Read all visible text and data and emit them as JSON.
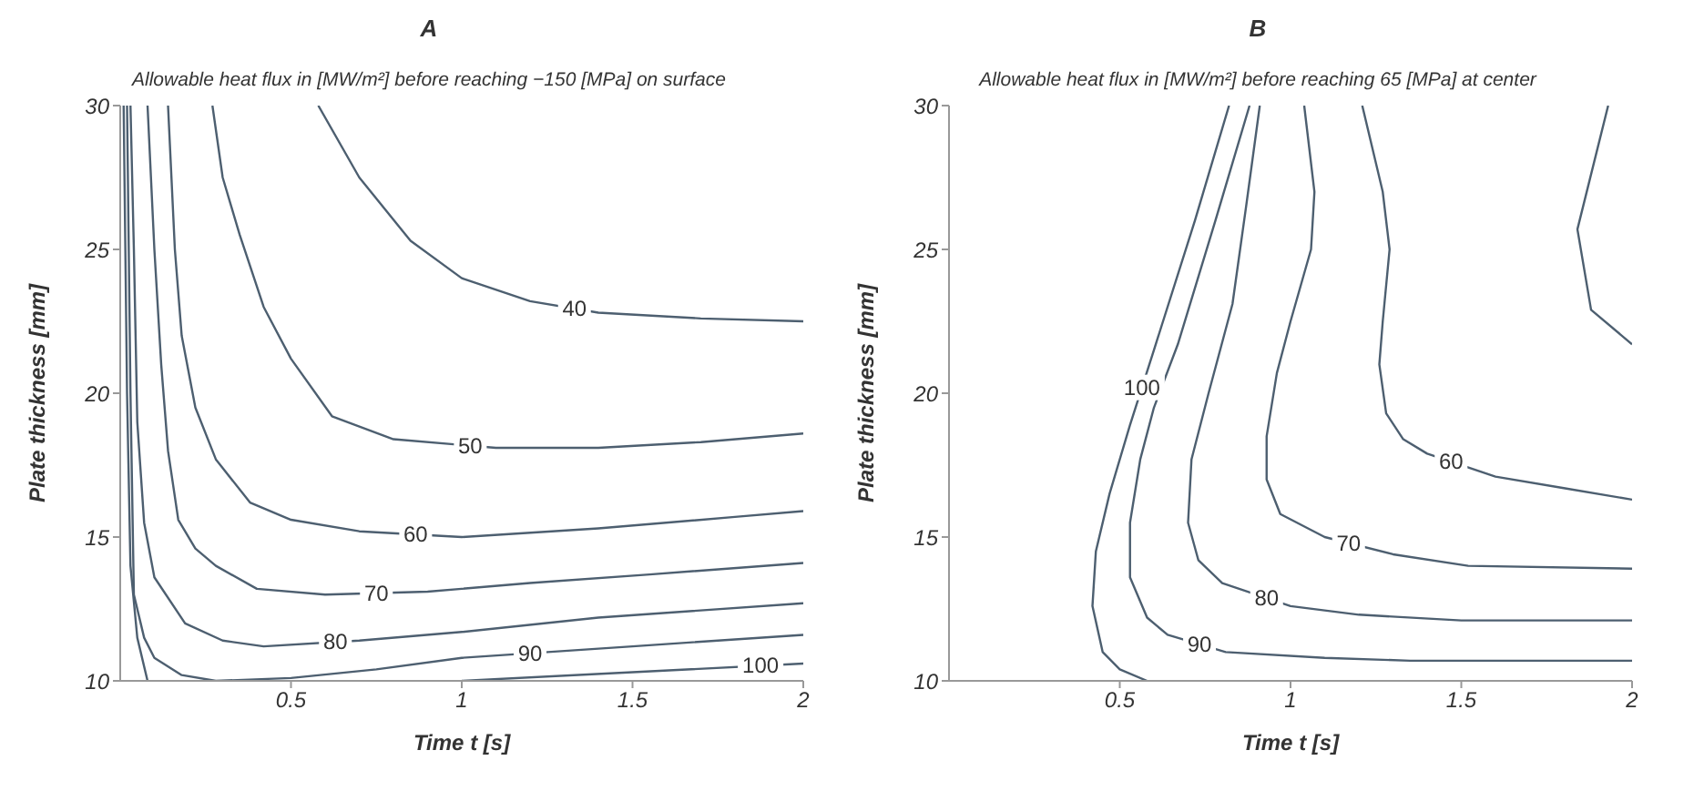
{
  "chart_data": [
    {
      "type": "line",
      "title": "A",
      "subtitle": "Allowable heat flux in [MW/m²] before reaching −150 [MPa] on surface",
      "xlabel": "Time t [s]",
      "ylabel": "Plate thickness [mm]",
      "xlim": [
        0,
        2
      ],
      "xticks": [
        0.5,
        1,
        1.5,
        2
      ],
      "ylim": [
        10,
        30
      ],
      "yticks": [
        10,
        15,
        20,
        25,
        30
      ],
      "grid": false,
      "legend": false,
      "marker": "none",
      "line_style": "solid",
      "series": [
        {
          "name": "40",
          "color": "#4d5f70",
          "x": [
            0.58,
            0.7,
            0.85,
            1,
            1.2,
            1.4,
            1.7,
            2
          ],
          "values": [
            30,
            27.5,
            25.3,
            24,
            23.2,
            22.8,
            22.6,
            22.5
          ]
        },
        {
          "name": "50",
          "color": "#4d5f70",
          "x": [
            0.27,
            0.3,
            0.35,
            0.42,
            0.5,
            0.62,
            0.8,
            1.1,
            1.4,
            1.7,
            2
          ],
          "values": [
            30,
            27.5,
            25.5,
            23,
            21.2,
            19.2,
            18.4,
            18.1,
            18.1,
            18.3,
            18.6
          ]
        },
        {
          "name": "60",
          "color": "#4d5f70",
          "x": [
            0.14,
            0.16,
            0.18,
            0.22,
            0.28,
            0.38,
            0.5,
            0.7,
            1,
            1.4,
            1.8,
            2
          ],
          "values": [
            30,
            25,
            22,
            19.5,
            17.7,
            16.2,
            15.6,
            15.2,
            15,
            15.3,
            15.7,
            15.9
          ]
        },
        {
          "name": "70",
          "color": "#4d5f70",
          "x": [
            0.08,
            0.1,
            0.12,
            0.14,
            0.17,
            0.22,
            0.28,
            0.4,
            0.6,
            0.9,
            1.2,
            1.55,
            2
          ],
          "values": [
            30,
            25,
            21,
            18,
            15.6,
            14.6,
            14,
            13.2,
            13,
            13.1,
            13.4,
            13.7,
            14.1
          ]
        },
        {
          "name": "80",
          "color": "#4d5f70",
          "x": [
            0.03,
            0.04,
            0.05,
            0.07,
            0.1,
            0.19,
            0.3,
            0.42,
            0.7,
            1,
            1.4,
            2
          ],
          "values": [
            30,
            25,
            19,
            15.5,
            13.6,
            12,
            11.4,
            11.2,
            11.4,
            11.7,
            12.2,
            12.7
          ]
        },
        {
          "name": "90",
          "color": "#4d5f70",
          "x": [
            0.02,
            0.03,
            0.04,
            0.07,
            0.1,
            0.18,
            0.28,
            0.5,
            0.75,
            1,
            1.5,
            2
          ],
          "values": [
            30,
            20,
            13,
            11.5,
            10.8,
            10.2,
            10,
            10.1,
            10.4,
            10.8,
            11.2,
            11.6
          ]
        },
        {
          "name": "100",
          "color": "#4d5f70",
          "x": [
            0.01,
            0.02,
            0.03,
            0.05,
            0.08,
            0.5,
            1,
            1.5,
            2
          ],
          "values": [
            30,
            20,
            14,
            11.5,
            10,
            null,
            10,
            10.3,
            10.6
          ]
        }
      ]
    },
    {
      "type": "line",
      "title": "B",
      "subtitle": "Allowable heat flux in [MW/m²] before reaching 65 [MPa] at center",
      "xlabel": "Time t [s]",
      "ylabel": "Plate thickness [mm]",
      "xlim": [
        0,
        2
      ],
      "xticks": [
        0.5,
        1,
        1.5,
        2
      ],
      "ylim": [
        10,
        30
      ],
      "yticks": [
        10,
        15,
        20,
        25,
        30
      ],
      "grid": false,
      "legend": false,
      "marker": "none",
      "line_style": "solid",
      "series": [
        {
          "name": "100",
          "color": "#4d5f70",
          "x": [
            0.82,
            0.72,
            0.6,
            0.53,
            0.47,
            0.43,
            0.42,
            0.45,
            0.5,
            0.58
          ],
          "values": [
            30,
            26,
            21.5,
            18.9,
            16.5,
            14.5,
            12.6,
            11,
            10.4,
            10
          ]
        },
        {
          "name": "90",
          "color": "#4d5f70",
          "x": [
            0.88,
            0.78,
            0.67,
            0.6,
            0.56,
            0.53,
            0.53,
            0.58,
            0.64,
            0.81,
            1.1,
            1.35,
            2
          ],
          "values": [
            30,
            26,
            21.7,
            19.5,
            17.7,
            15.5,
            13.6,
            12.2,
            11.6,
            11,
            10.8,
            10.7,
            10.7
          ]
        },
        {
          "name": "80",
          "color": "#4d5f70",
          "x": [
            0.91,
            0.87,
            0.83,
            0.76,
            0.71,
            0.7,
            0.73,
            0.8,
            1,
            1.2,
            1.5,
            2
          ],
          "values": [
            30,
            26.5,
            23.1,
            20,
            17.7,
            15.5,
            14.2,
            13.4,
            12.6,
            12.3,
            12.1,
            12.1
          ]
        },
        {
          "name": "70",
          "color": "#4d5f70",
          "x": [
            1.04,
            1.07,
            1.06,
            1,
            0.96,
            0.93,
            0.93,
            0.97,
            1.1,
            1.3,
            1.52,
            2
          ],
          "values": [
            30,
            27,
            25,
            22.5,
            20.7,
            18.5,
            17,
            15.8,
            15,
            14.4,
            14,
            13.9
          ]
        },
        {
          "name": "60",
          "color": "#4d5f70",
          "x": [
            1.21,
            1.27,
            1.29,
            1.27,
            1.26,
            1.28,
            1.33,
            1.4,
            1.6,
            1.8,
            2
          ],
          "values": [
            30,
            27,
            25,
            22.5,
            21,
            19.3,
            18.4,
            17.9,
            17.1,
            16.7,
            16.3
          ]
        },
        {
          "color": "#4d5f70",
          "x": [
            1.93,
            1.84,
            1.88,
            2
          ],
          "values": [
            30,
            25.7,
            22.9,
            21.7
          ]
        }
      ]
    }
  ]
}
